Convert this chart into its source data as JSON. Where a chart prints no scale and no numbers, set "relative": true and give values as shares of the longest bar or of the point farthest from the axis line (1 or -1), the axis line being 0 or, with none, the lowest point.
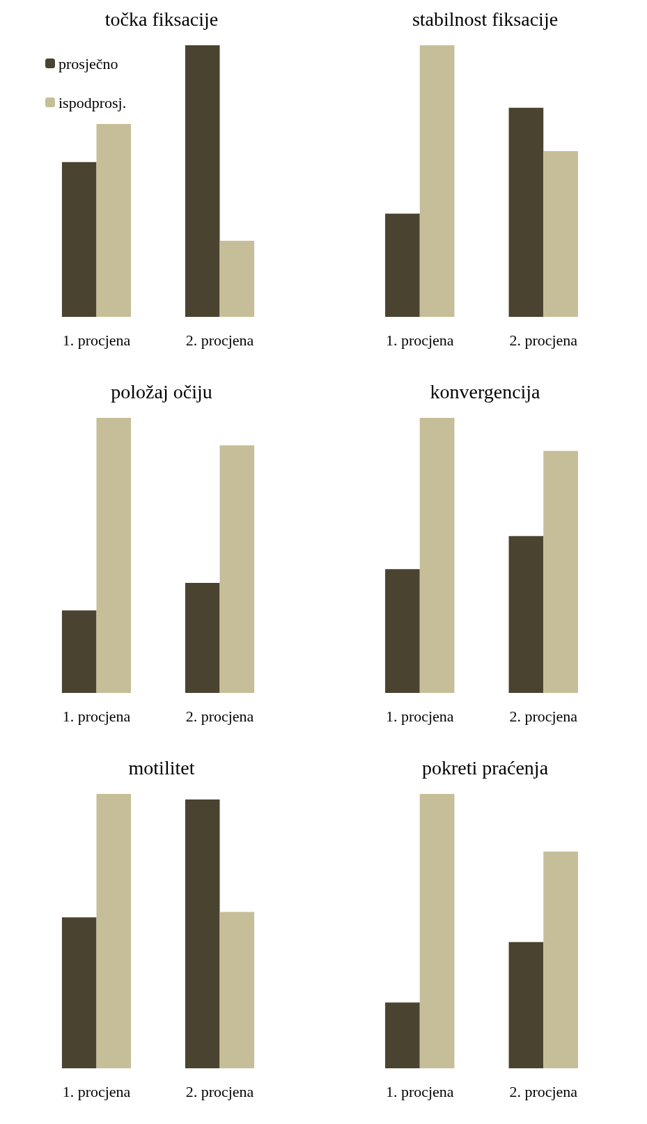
{
  "chart_data": [
    {
      "type": "bar",
      "title": "točka fiksacije",
      "relative": true,
      "legend": "top left",
      "categories": [
        "1. procjena",
        "2. procjena"
      ],
      "series": [
        {
          "name": "prosječno",
          "color": "#4a4330",
          "values": [
            0.57,
            1
          ]
        },
        {
          "name": "ispodprosj.",
          "color": "#c6be98",
          "values": [
            0.71,
            0.28
          ]
        }
      ]
    },
    {
      "type": "bar",
      "title": "stabilnost fiksacije",
      "relative": true,
      "categories": [
        "1. procjena",
        "2. procjena"
      ],
      "series": [
        {
          "color": "#4a4330",
          "values": [
            0.38,
            0.77
          ]
        },
        {
          "color": "#c6be98",
          "values": [
            1,
            0.61
          ]
        }
      ]
    },
    {
      "type": "bar",
      "title": "položaj očiju",
      "relative": true,
      "categories": [
        "1. procjena",
        "2. procjena"
      ],
      "series": [
        {
          "color": "#4a4330",
          "values": [
            0.3,
            0.4
          ]
        },
        {
          "color": "#c6be98",
          "values": [
            1,
            0.9
          ]
        }
      ]
    },
    {
      "type": "bar",
      "title": "konvergencija",
      "relative": true,
      "categories": [
        "1. procjena",
        "2. procjena"
      ],
      "series": [
        {
          "color": "#4a4330",
          "values": [
            0.45,
            0.57
          ]
        },
        {
          "color": "#c6be98",
          "values": [
            1,
            0.88
          ]
        }
      ]
    },
    {
      "type": "bar",
      "title": "motilitet",
      "relative": true,
      "categories": [
        "1. procjena",
        "2. procjena"
      ],
      "series": [
        {
          "color": "#4a4330",
          "values": [
            0.55,
            0.98
          ]
        },
        {
          "color": "#c6be98",
          "values": [
            1,
            0.57
          ]
        }
      ]
    },
    {
      "type": "bar",
      "title": "pokreti praćenja",
      "relative": true,
      "categories": [
        "1. procjena",
        "2. procjena"
      ],
      "series": [
        {
          "color": "#4a4330",
          "values": [
            0.24,
            0.46
          ]
        },
        {
          "color": "#c6be98",
          "values": [
            1,
            0.79
          ]
        }
      ]
    }
  ]
}
